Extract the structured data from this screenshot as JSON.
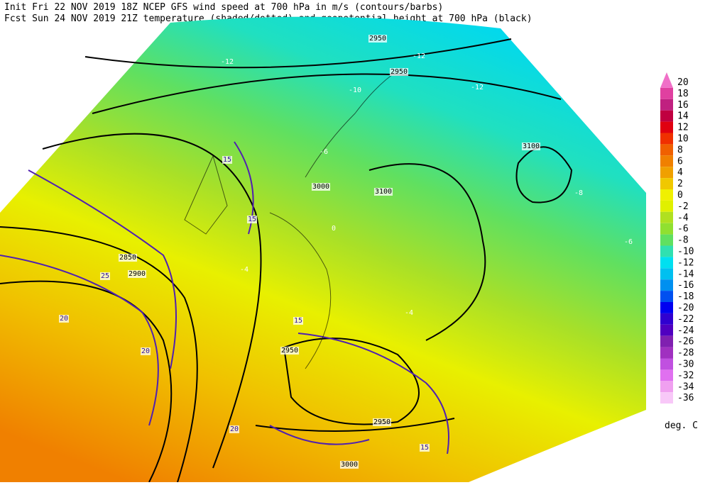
{
  "header": {
    "line1": "Init  Fri 22 NOV 2019 18Z   NCEP GFS wind speed at 700 hPa in m/s (contours/barbs)",
    "line2": "Fcst Sun 24 NOV 2019 21Z  temperature (shaded/dotted) and geopotential height at 700 hPa (black)"
  },
  "colorbar": {
    "ticks": [
      20,
      18,
      16,
      14,
      12,
      10,
      8,
      6,
      4,
      2,
      0,
      -2,
      -4,
      -6,
      -8,
      -10,
      -12,
      -14,
      -16,
      -18,
      -20,
      -22,
      -24,
      -26,
      -28,
      -30,
      -32,
      -34,
      -36
    ],
    "colors": [
      "#f070c8",
      "#e040a0",
      "#c02080",
      "#c00040",
      "#e00010",
      "#f03000",
      "#f06000",
      "#f08000",
      "#f0a000",
      "#f0c800",
      "#f0f000",
      "#e0f000",
      "#b0e020",
      "#90e030",
      "#60e060",
      "#30e0b0",
      "#00e0f0",
      "#00c0f0",
      "#0090f0",
      "#0050f0",
      "#0000f0",
      "#3000d0",
      "#5000c0",
      "#8020b0",
      "#a030c0",
      "#c050e0",
      "#e070f0",
      "#f0a0f0",
      "#f8c8f8"
    ],
    "unit": "deg. C"
  },
  "map_labels": [
    "2950",
    "2950",
    "3100",
    "3000",
    "3100",
    "2900",
    "2850",
    "2950",
    "2950",
    "3000",
    "-12",
    "-12",
    "-12",
    "-10",
    "-8",
    "-6",
    "-6",
    "-4",
    "-4",
    "0",
    "15",
    "15",
    "15",
    "20",
    "20",
    "25",
    "20",
    "15"
  ]
}
